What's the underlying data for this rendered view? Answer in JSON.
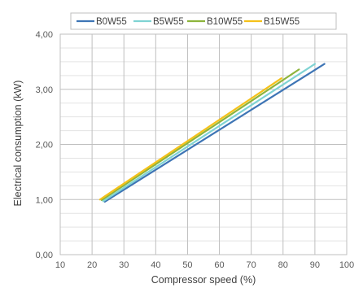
{
  "chart_data": {
    "type": "line",
    "xlabel": "Compressor speed (%)",
    "ylabel": "Electrical consumption (kW)",
    "xlim": [
      10,
      100
    ],
    "ylim": [
      0,
      4
    ],
    "x_ticks": [
      "10",
      "20",
      "30",
      "40",
      "50",
      "60",
      "70",
      "80",
      "90",
      "100"
    ],
    "y_ticks": [
      "0,00",
      "1,00",
      "2,00",
      "3,00",
      "4,00"
    ],
    "grid": true,
    "legend_position": "top",
    "series": [
      {
        "name": "B0W55",
        "color": "#3E75B5",
        "x": [
          24,
          93
        ],
        "y": [
          0.96,
          3.46
        ]
      },
      {
        "name": "B5W55",
        "color": "#7FD3D3",
        "x": [
          23.5,
          90
        ],
        "y": [
          0.97,
          3.46
        ]
      },
      {
        "name": "B10W55",
        "color": "#8DB43C",
        "x": [
          23,
          85
        ],
        "y": [
          0.99,
          3.36
        ]
      },
      {
        "name": "B15W55",
        "color": "#F5C11A",
        "x": [
          22.5,
          79.5
        ],
        "y": [
          1.0,
          3.2
        ]
      }
    ]
  }
}
